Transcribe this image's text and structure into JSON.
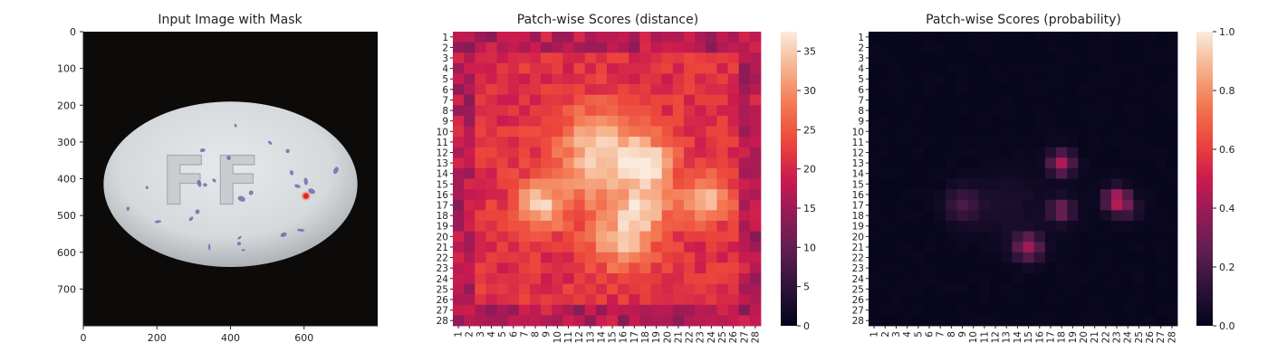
{
  "chart_data": [
    {
      "type": "image",
      "title": "Input Image with Mask",
      "x_ticks": [
        "0",
        "200",
        "400",
        "600"
      ],
      "y_ticks": [
        "0",
        "100",
        "200",
        "300",
        "400",
        "500",
        "600",
        "700"
      ],
      "xlim": [
        0,
        800
      ],
      "ylim": [
        800,
        0
      ],
      "xtick_values": [
        0,
        200,
        400,
        600
      ],
      "ytick_values": [
        0,
        100,
        200,
        300,
        400,
        500,
        600,
        700
      ],
      "pill": {
        "cx": 400,
        "cy": 415,
        "rx": 345,
        "ry": 225,
        "engraving": "FF"
      },
      "mask_point": {
        "x": 605,
        "y": 447
      },
      "colors": {
        "background": "#0d0b0a",
        "pill": "#d9dcde",
        "speckle": "#5860a8",
        "mask": "#e8241f"
      }
    },
    {
      "type": "heatmap",
      "title": "Patch-wise Scores (distance)",
      "x_labels": [
        "1",
        "2",
        "3",
        "4",
        "5",
        "6",
        "7",
        "8",
        "9",
        "10",
        "11",
        "12",
        "13",
        "14",
        "15",
        "16",
        "17",
        "18",
        "19",
        "20",
        "21",
        "22",
        "23",
        "24",
        "25",
        "26",
        "27",
        "28"
      ],
      "y_labels": [
        "1",
        "2",
        "3",
        "4",
        "5",
        "6",
        "7",
        "8",
        "9",
        "10",
        "11",
        "12",
        "13",
        "14",
        "15",
        "16",
        "17",
        "18",
        "19",
        "20",
        "21",
        "22",
        "23",
        "24",
        "25",
        "26",
        "27",
        "28"
      ],
      "colorbar": {
        "min": 0,
        "max": 37.5,
        "ticks": [
          0,
          5,
          10,
          15,
          20,
          25,
          30,
          35
        ]
      },
      "colormap": "rocket",
      "base": 21,
      "blobs": [
        {
          "x": 8.5,
          "y": 17,
          "amp": 13,
          "r": 1.6
        },
        {
          "x": 16,
          "y": 20.5,
          "amp": 11,
          "r": 2
        },
        {
          "x": 18,
          "y": 13,
          "amp": 13,
          "r": 1.5
        },
        {
          "x": 23.5,
          "y": 16.5,
          "amp": 12,
          "r": 1.6
        },
        {
          "x": 13.5,
          "y": 11,
          "amp": 8,
          "r": 2.5
        },
        {
          "x": 18,
          "y": 17.5,
          "amp": 9,
          "r": 1.5
        },
        {
          "x": 15,
          "y": 14,
          "amp": 8,
          "r": 3.5
        }
      ]
    },
    {
      "type": "heatmap",
      "title": "Patch-wise Scores (probability)",
      "x_labels": [
        "1",
        "2",
        "3",
        "4",
        "5",
        "6",
        "7",
        "8",
        "9",
        "10",
        "11",
        "12",
        "13",
        "14",
        "15",
        "16",
        "17",
        "18",
        "19",
        "20",
        "21",
        "22",
        "23",
        "24",
        "25",
        "26",
        "27",
        "28"
      ],
      "y_labels": [
        "1",
        "2",
        "3",
        "4",
        "5",
        "6",
        "7",
        "8",
        "9",
        "10",
        "11",
        "12",
        "13",
        "14",
        "15",
        "16",
        "17",
        "18",
        "19",
        "20",
        "21",
        "22",
        "23",
        "24",
        "25",
        "26",
        "27",
        "28"
      ],
      "colorbar": {
        "min": 0,
        "max": 1.0,
        "ticks": [
          "0.0",
          "0.2",
          "0.4",
          "0.6",
          "0.8",
          "1.0"
        ]
      },
      "colormap": "rocket",
      "base": 0.01,
      "blobs": [
        {
          "x": 23,
          "y": 16.5,
          "amp": 0.46,
          "r": 0.8
        },
        {
          "x": 18,
          "y": 13,
          "amp": 0.42,
          "r": 0.8
        },
        {
          "x": 15,
          "y": 21,
          "amp": 0.38,
          "r": 0.9
        },
        {
          "x": 18,
          "y": 17.5,
          "amp": 0.3,
          "r": 0.8
        },
        {
          "x": 9,
          "y": 17,
          "amp": 0.18,
          "r": 1.1
        },
        {
          "x": 24,
          "y": 17.5,
          "amp": 0.14,
          "r": 0.8
        },
        {
          "x": 13,
          "y": 17,
          "amp": 0.06,
          "r": 2.5
        }
      ]
    }
  ]
}
